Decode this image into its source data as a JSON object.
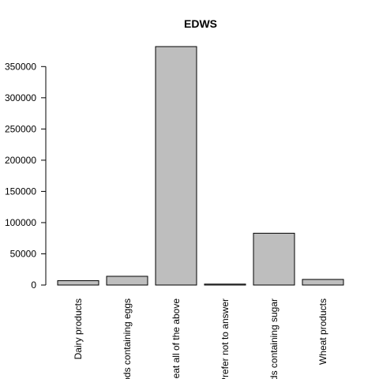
{
  "chart_data": {
    "type": "bar",
    "title": "EDWS",
    "xlabel": "",
    "ylabel": "",
    "categories": [
      "Dairy products",
      "Foods containing eggs",
      "I eat all of the above",
      "Prefer not to answer",
      "Foods containing sugar",
      "Wheat products"
    ],
    "values": [
      7000,
      14000,
      382000,
      1500,
      83000,
      9000
    ],
    "yticks": [
      0,
      50000,
      100000,
      150000,
      200000,
      250000,
      300000,
      350000
    ],
    "ylim": [
      0,
      382000
    ],
    "grid": false,
    "bar_color": "#bebebe",
    "edge_color": "#000000"
  }
}
